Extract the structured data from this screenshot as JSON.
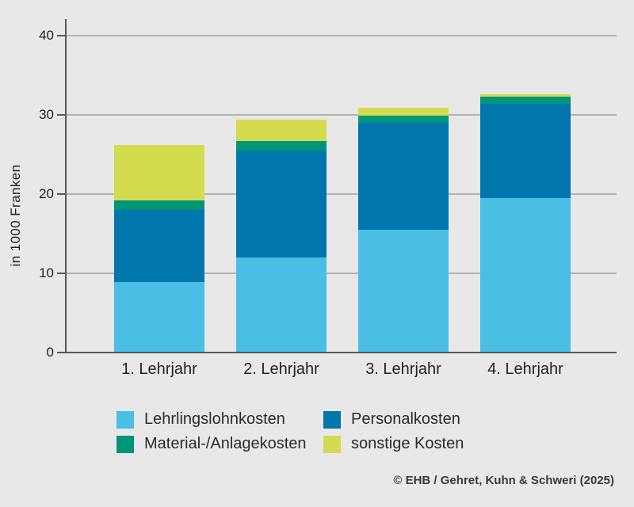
{
  "chart_data": {
    "type": "bar",
    "stacked": true,
    "title": "",
    "xlabel": "",
    "ylabel": "in 1000 Franken",
    "ylim": [
      0,
      42
    ],
    "yticks": [
      0,
      10,
      20,
      30,
      40
    ],
    "grid": true,
    "legend_position": "bottom",
    "categories": [
      "1. Lehrjahr",
      "2. Lehrjahr",
      "3. Lehrjahr",
      "4. Lehrjahr"
    ],
    "series": [
      {
        "name": "Lehrlingslohnkosten",
        "color": "#4abee4",
        "values": [
          8.9,
          12.0,
          15.5,
          19.5
        ]
      },
      {
        "name": "Personalkosten",
        "color": "#0076ad",
        "values": [
          9.1,
          13.5,
          13.5,
          11.9
        ]
      },
      {
        "name": "Material-/Anlagekosten",
        "color": "#009678",
        "values": [
          1.2,
          1.2,
          0.9,
          0.9
        ]
      },
      {
        "name": "sonstige Kosten",
        "color": "#d3db4f",
        "values": [
          7.0,
          2.7,
          1.0,
          0.3
        ]
      }
    ],
    "stack_totals": [
      26.2,
      29.4,
      30.9,
      32.6
    ]
  },
  "footer": {
    "attribution": "© EHB / Gehret, Kuhn & Schweri (2025)"
  },
  "colors": {
    "background": "#e8e8e8",
    "gridline": "#b2b2b2",
    "axis": "#58585a",
    "text": "#1f1f1f"
  }
}
